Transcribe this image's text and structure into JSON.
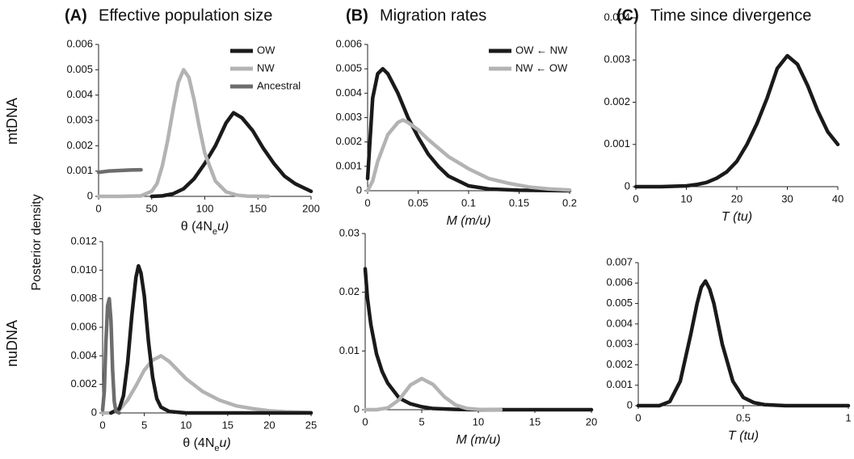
{
  "columns": [
    {
      "label": "(A)",
      "title": "Effective population size"
    },
    {
      "label": "(B)",
      "title": "Migration rates"
    },
    {
      "label": "(C)",
      "title": "Time since divergence"
    }
  ],
  "row_labels": [
    "mtDNA",
    "nuDNA"
  ],
  "y_axis_label": "Posterior density",
  "chart_data": [
    {
      "type": "line",
      "xlabel": [
        "θ (4N",
        "e",
        "u)"
      ],
      "xlabel_italic": false,
      "xlim": [
        0,
        200
      ],
      "xticks": [
        0,
        50,
        100,
        150,
        200
      ],
      "ylim": [
        0,
        0.006
      ],
      "yticks": [
        0,
        0.001,
        0.002,
        0.003,
        0.004,
        0.005,
        0.006
      ],
      "legend": "upper right",
      "series": [
        {
          "name": "OW",
          "color": "#1a1a1a",
          "x": [
            50,
            60,
            70,
            80,
            90,
            100,
            110,
            120,
            127,
            135,
            145,
            155,
            165,
            175,
            185,
            195,
            200
          ],
          "values": [
            0,
            2e-05,
            0.0001,
            0.0003,
            0.0007,
            0.0013,
            0.002,
            0.0029,
            0.0033,
            0.0031,
            0.0026,
            0.0019,
            0.0013,
            0.0008,
            0.0005,
            0.0003,
            0.0002
          ]
        },
        {
          "name": "NW",
          "color": "#b3b3b3",
          "x": [
            0,
            20,
            40,
            50,
            55,
            60,
            65,
            70,
            75,
            80,
            85,
            90,
            95,
            100,
            110,
            120,
            130,
            140,
            160
          ],
          "values": [
            0,
            0,
            2e-05,
            0.0002,
            0.0005,
            0.0012,
            0.0022,
            0.0034,
            0.0045,
            0.005,
            0.0047,
            0.0038,
            0.0027,
            0.0017,
            0.0006,
            0.00018,
            5e-05,
            1e-05,
            0
          ]
        },
        {
          "name": "Ancestral",
          "color": "#6d6d6d",
          "x": [
            0,
            10,
            20,
            30,
            40
          ],
          "values": [
            0.00095,
            0.001,
            0.00102,
            0.00104,
            0.00105
          ]
        }
      ]
    },
    {
      "type": "line",
      "xlabel": [
        "M (m/u)"
      ],
      "xlabel_italic": true,
      "xlim": [
        0,
        0.2
      ],
      "xticks": [
        0,
        0.05,
        0.1,
        0.15,
        0.2
      ],
      "ylim": [
        0,
        0.006
      ],
      "yticks": [
        0,
        0.001,
        0.002,
        0.003,
        0.004,
        0.005,
        0.006
      ],
      "legend": "upper right",
      "series": [
        {
          "name": "OW ← NW",
          "color": "#1a1a1a",
          "x": [
            0,
            0.005,
            0.01,
            0.015,
            0.02,
            0.03,
            0.04,
            0.05,
            0.06,
            0.07,
            0.08,
            0.1,
            0.12,
            0.15,
            0.2
          ],
          "values": [
            0.0005,
            0.0038,
            0.0048,
            0.005,
            0.0048,
            0.004,
            0.003,
            0.0022,
            0.0015,
            0.001,
            0.0006,
            0.0002,
            7e-05,
            2e-05,
            0
          ]
        },
        {
          "name": "NW ← OW",
          "color": "#b3b3b3",
          "x": [
            0,
            0.005,
            0.01,
            0.02,
            0.03,
            0.035,
            0.04,
            0.05,
            0.06,
            0.08,
            0.1,
            0.12,
            0.14,
            0.16,
            0.18,
            0.2
          ],
          "values": [
            0,
            0.0004,
            0.0012,
            0.0023,
            0.0028,
            0.0029,
            0.0028,
            0.0025,
            0.0021,
            0.0014,
            0.0009,
            0.0005,
            0.0003,
            0.00015,
            7e-05,
            3e-05
          ]
        }
      ]
    },
    {
      "type": "line",
      "xlabel": [
        "T (tu)"
      ],
      "xlabel_italic": true,
      "xlim": [
        0,
        40
      ],
      "xticks": [
        0,
        10,
        20,
        30,
        40
      ],
      "ylim": [
        0,
        0.004
      ],
      "yticks": [
        0,
        0.001,
        0.002,
        0.003,
        0.004
      ],
      "series": [
        {
          "color": "#1a1a1a",
          "x": [
            0,
            5,
            10,
            12,
            14,
            16,
            18,
            20,
            22,
            24,
            26,
            28,
            30,
            32,
            34,
            36,
            38,
            40
          ],
          "values": [
            0,
            0,
            2e-05,
            5e-05,
            0.0001,
            0.0002,
            0.00035,
            0.0006,
            0.001,
            0.0015,
            0.0021,
            0.0028,
            0.0031,
            0.0029,
            0.0024,
            0.0018,
            0.0013,
            0.001
          ]
        }
      ]
    },
    {
      "type": "line",
      "xlabel": [
        "θ (4N",
        "e",
        "u)"
      ],
      "xlabel_italic": false,
      "xlim": [
        0,
        25
      ],
      "xticks": [
        0,
        5,
        10,
        15,
        20,
        25
      ],
      "ylim": [
        0,
        0.012
      ],
      "yticks": [
        0,
        0.002,
        0.004,
        0.006,
        0.008,
        {
          "value": 0.01,
          "label": "0.010"
        },
        0.012
      ],
      "series": [
        {
          "color": "#b3b3b3",
          "x": [
            0,
            1,
            2,
            3,
            4,
            5,
            6,
            7,
            8,
            9,
            10,
            12,
            14,
            16,
            18,
            20,
            22,
            25
          ],
          "values": [
            0,
            0,
            0.0002,
            0.0009,
            0.0019,
            0.003,
            0.0037,
            0.004,
            0.0036,
            0.003,
            0.0024,
            0.0015,
            0.0009,
            0.0005,
            0.0003,
            0.00015,
            8e-05,
            3e-05
          ]
        },
        {
          "color": "#1a1a1a",
          "x": [
            1,
            2,
            2.5,
            3,
            3.5,
            4,
            4.3,
            4.6,
            5,
            5.5,
            6,
            6.5,
            7,
            8,
            10,
            15,
            25
          ],
          "values": [
            0,
            0.0003,
            0.0012,
            0.0035,
            0.0068,
            0.0095,
            0.0103,
            0.0098,
            0.0082,
            0.005,
            0.0025,
            0.001,
            0.0004,
            0.0001,
            0,
            0,
            0
          ]
        },
        {
          "color": "#6d6d6d",
          "x": [
            0,
            0.2,
            0.4,
            0.6,
            0.8,
            1,
            1.2,
            1.4,
            1.6,
            2
          ],
          "values": [
            0.0002,
            0.0015,
            0.005,
            0.0075,
            0.008,
            0.0065,
            0.003,
            0.0008,
            0.0001,
            0
          ]
        }
      ]
    },
    {
      "type": "line",
      "xlabel": [
        "M (m/u)"
      ],
      "xlabel_italic": true,
      "xlim": [
        0,
        20
      ],
      "xticks": [
        0,
        5,
        10,
        15,
        20
      ],
      "ylim": [
        0,
        0.03
      ],
      "yticks": [
        0,
        0.01,
        0.02,
        0.03
      ],
      "series": [
        {
          "color": "#1a1a1a",
          "x": [
            0,
            0.2,
            0.5,
            1,
            1.5,
            2,
            3,
            4,
            5,
            6,
            8,
            10,
            15,
            20
          ],
          "values": [
            0.024,
            0.019,
            0.0145,
            0.0095,
            0.0065,
            0.0045,
            0.002,
            0.001,
            0.0005,
            0.0002,
            5e-05,
            0,
            0,
            0
          ]
        },
        {
          "color": "#b3b3b3",
          "x": [
            0,
            1,
            2,
            3,
            4,
            5,
            6,
            7,
            8,
            9,
            10,
            12
          ],
          "values": [
            0,
            0,
            0.0003,
            0.0017,
            0.0042,
            0.0053,
            0.0043,
            0.0022,
            0.0008,
            0.0002,
            5e-05,
            0
          ]
        }
      ]
    },
    {
      "type": "line",
      "xlabel": [
        "T (tu)"
      ],
      "xlabel_italic": true,
      "xlim": [
        0,
        1
      ],
      "xticks": [
        0,
        0.5,
        1
      ],
      "ylim": [
        0,
        0.007
      ],
      "yticks": [
        0,
        0.001,
        0.002,
        0.003,
        0.004,
        0.005,
        0.006,
        0.007
      ],
      "series": [
        {
          "color": "#1a1a1a",
          "x": [
            0,
            0.1,
            0.15,
            0.2,
            0.25,
            0.28,
            0.3,
            0.32,
            0.34,
            0.36,
            0.4,
            0.45,
            0.5,
            0.55,
            0.6,
            0.7,
            0.8,
            1
          ],
          "values": [
            0,
            0,
            0.0002,
            0.0012,
            0.0035,
            0.005,
            0.0058,
            0.0061,
            0.0057,
            0.005,
            0.003,
            0.0012,
            0.0004,
            0.00015,
            5e-05,
            0,
            0,
            0
          ]
        }
      ]
    }
  ]
}
